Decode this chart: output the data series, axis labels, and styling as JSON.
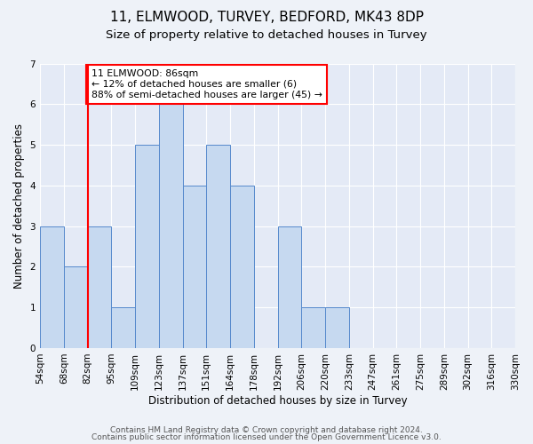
{
  "title": "11, ELMWOOD, TURVEY, BEDFORD, MK43 8DP",
  "subtitle": "Size of property relative to detached houses in Turvey",
  "xlabel": "Distribution of detached houses by size in Turvey",
  "ylabel": "Number of detached properties",
  "bin_labels": [
    "54sqm",
    "68sqm",
    "82sqm",
    "95sqm",
    "109sqm",
    "123sqm",
    "137sqm",
    "151sqm",
    "164sqm",
    "178sqm",
    "192sqm",
    "206sqm",
    "220sqm",
    "233sqm",
    "247sqm",
    "261sqm",
    "275sqm",
    "289sqm",
    "302sqm",
    "316sqm",
    "330sqm"
  ],
  "bar_heights": [
    3,
    2,
    3,
    1,
    5,
    6,
    4,
    5,
    4,
    0,
    3,
    1,
    1,
    0,
    0,
    0,
    0,
    0,
    0,
    0
  ],
  "bar_color": "#c6d9f0",
  "bar_edge_color": "#5588cc",
  "property_line_x": 2,
  "annotation_text": "11 ELMWOOD: 86sqm\n← 12% of detached houses are smaller (6)\n88% of semi-detached houses are larger (45) →",
  "annotation_box_color": "white",
  "annotation_box_edge": "red",
  "ylim": [
    0,
    7
  ],
  "yticks": [
    0,
    1,
    2,
    3,
    4,
    5,
    6,
    7
  ],
  "footer1": "Contains HM Land Registry data © Crown copyright and database right 2024.",
  "footer2": "Contains public sector information licensed under the Open Government Licence v3.0.",
  "bg_color": "#eef2f8",
  "plot_bg_color": "#e4eaf6",
  "grid_color": "white",
  "title_fontsize": 11,
  "subtitle_fontsize": 9.5,
  "label_fontsize": 8.5,
  "tick_fontsize": 7.5,
  "footer_fontsize": 6.5
}
